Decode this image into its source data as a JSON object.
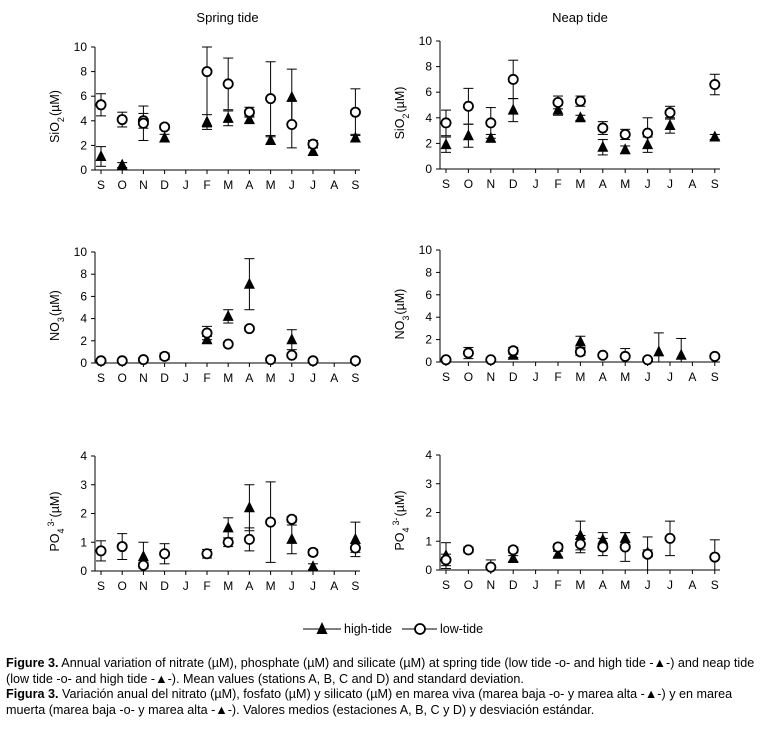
{
  "colors": {
    "ink": "#000000",
    "background": "#ffffff"
  },
  "legend": {
    "high_label": "high-tide",
    "low_label": "low-tide"
  },
  "caption": {
    "en_label": "Figure 3.",
    "en_text": " Annual variation of nitrate (µM), phosphate (µM) and silicate (µM) at spring tide (low tide -o- and high tide -▲-) and neap tide (low tide -o- and high tide -▲-). Mean values (stations A, B, C and D) and standard deviation.",
    "es_label": "Figura 3.",
    "es_text": " Variación anual del nitrato (µM), fosfato (µM) y silicato (µM) en marea viva (marea baja -o- y marea alta -▲-) y en marea muerta (marea baja -o- y marea alta -▲-). Valores medios (estaciones A, B, C y D) y desviación estándar."
  },
  "chart_data": [
    {
      "id": "sio2-spring",
      "type": "scatter",
      "title": "Spring tide",
      "ylabel": "SiO2 (µM)",
      "x_labels": [
        "S",
        "O",
        "N",
        "D",
        "J",
        "F",
        "M",
        "A",
        "M",
        "J",
        "J",
        "A",
        "S"
      ],
      "ylim": [
        0,
        10
      ],
      "yticks": [
        0,
        2,
        4,
        6,
        8,
        10
      ],
      "series": [
        {
          "name": "high-tide",
          "points": [
            {
              "x": 0,
              "y": 1.1,
              "sd": 0.8
            },
            {
              "x": 1,
              "y": 0.4,
              "sd": 0.2
            },
            {
              "x": 3,
              "y": 2.6,
              "sd": 0.3
            },
            {
              "x": 5,
              "y": 3.9,
              "sd": 0.6
            },
            {
              "x": 6,
              "y": 4.2,
              "sd": 0.6
            },
            {
              "x": 7,
              "y": 4.1,
              "sd": 0.3
            },
            {
              "x": 8,
              "y": 2.4,
              "sd": 0.3
            },
            {
              "x": 9,
              "y": 5.9,
              "sd": 2.3
            },
            {
              "x": 10,
              "y": 1.5,
              "sd": 0.3
            },
            {
              "x": 12,
              "y": 2.6,
              "sd": 0.3
            }
          ]
        },
        {
          "name": "low-tide",
          "points": [
            {
              "x": 0,
              "y": 5.3,
              "sd": 0.9
            },
            {
              "x": 1,
              "y": 4.1,
              "sd": 0.6
            },
            {
              "x": 2,
              "y": 4.0,
              "sd": 0.6
            },
            {
              "x": 2,
              "y": 3.8,
              "sd": 1.4
            },
            {
              "x": 3,
              "y": 3.5,
              "sd": 0.2
            },
            {
              "x": 5,
              "y": 8.0,
              "sd": 4.5
            },
            {
              "x": 6,
              "y": 7.0,
              "sd": 2.1
            },
            {
              "x": 7,
              "y": 4.7,
              "sd": 0.4
            },
            {
              "x": 8,
              "y": 5.8,
              "sd": 3.0
            },
            {
              "x": 9,
              "y": 3.7,
              "sd": 1.9
            },
            {
              "x": 10,
              "y": 2.1,
              "sd": 0.3
            },
            {
              "x": 12,
              "y": 4.7,
              "sd": 1.9
            }
          ]
        }
      ]
    },
    {
      "id": "sio2-neap",
      "type": "scatter",
      "title": "Neap tide",
      "ylabel": "SiO2 (µM)",
      "x_labels": [
        "S",
        "O",
        "N",
        "D",
        "J",
        "F",
        "M",
        "A",
        "M",
        "J",
        "J",
        "A",
        "S"
      ],
      "ylim": [
        0,
        10
      ],
      "yticks": [
        0,
        2,
        4,
        6,
        8,
        10
      ],
      "series": [
        {
          "name": "high-tide",
          "points": [
            {
              "x": 0,
              "y": 1.9,
              "sd": 0.6
            },
            {
              "x": 1,
              "y": 2.6,
              "sd": 0.9
            },
            {
              "x": 2,
              "y": 2.4,
              "sd": 0.3
            },
            {
              "x": 3,
              "y": 4.6,
              "sd": 0.9
            },
            {
              "x": 5,
              "y": 4.6,
              "sd": 0.4
            },
            {
              "x": 6,
              "y": 4.0,
              "sd": 0.2
            },
            {
              "x": 7,
              "y": 1.7,
              "sd": 0.6
            },
            {
              "x": 8,
              "y": 1.5,
              "sd": 0.3
            },
            {
              "x": 9,
              "y": 1.9,
              "sd": 0.6
            },
            {
              "x": 10,
              "y": 3.4,
              "sd": 0.6
            },
            {
              "x": 12,
              "y": 2.5,
              "sd": 0.2
            }
          ]
        },
        {
          "name": "low-tide",
          "points": [
            {
              "x": 0,
              "y": 3.6,
              "sd": 1.0
            },
            {
              "x": 1,
              "y": 4.9,
              "sd": 1.4
            },
            {
              "x": 2,
              "y": 3.6,
              "sd": 1.2
            },
            {
              "x": 3,
              "y": 7.0,
              "sd": 1.5
            },
            {
              "x": 5,
              "y": 5.2,
              "sd": 0.5
            },
            {
              "x": 6,
              "y": 5.3,
              "sd": 0.4
            },
            {
              "x": 7,
              "y": 3.2,
              "sd": 0.5
            },
            {
              "x": 8,
              "y": 2.7,
              "sd": 0.4
            },
            {
              "x": 9,
              "y": 2.8,
              "sd": 1.2
            },
            {
              "x": 10,
              "y": 4.4,
              "sd": 0.5
            },
            {
              "x": 12,
              "y": 6.6,
              "sd": 0.8
            }
          ]
        }
      ]
    },
    {
      "id": "no3-spring",
      "type": "scatter",
      "title": "",
      "ylabel": "NO3 (µM)",
      "x_labels": [
        "S",
        "O",
        "N",
        "D",
        "J",
        "F",
        "M",
        "A",
        "M",
        "J",
        "J",
        "A",
        "S"
      ],
      "ylim": [
        0,
        10
      ],
      "yticks": [
        0,
        2,
        4,
        6,
        8,
        10
      ],
      "series": [
        {
          "name": "high-tide",
          "points": [
            {
              "x": 5,
              "y": 2.1,
              "sd": 0.3
            },
            {
              "x": 6,
              "y": 4.2,
              "sd": 0.6
            },
            {
              "x": 7,
              "y": 7.1,
              "sd": 2.3
            },
            {
              "x": 9,
              "y": 2.1,
              "sd": 0.9
            }
          ]
        },
        {
          "name": "low-tide",
          "points": [
            {
              "x": 0,
              "y": 0.2,
              "sd": 0.1
            },
            {
              "x": 1,
              "y": 0.2,
              "sd": 0.1
            },
            {
              "x": 2,
              "y": 0.3,
              "sd": 0.1
            },
            {
              "x": 3,
              "y": 0.6,
              "sd": 0.3
            },
            {
              "x": 5,
              "y": 2.7,
              "sd": 0.6
            },
            {
              "x": 6,
              "y": 1.7,
              "sd": 0.2
            },
            {
              "x": 7,
              "y": 3.1,
              "sd": 0.2
            },
            {
              "x": 8,
              "y": 0.3,
              "sd": 0.1
            },
            {
              "x": 9,
              "y": 0.7,
              "sd": 0.2
            },
            {
              "x": 10,
              "y": 0.2,
              "sd": 0.1
            },
            {
              "x": 12,
              "y": 0.2,
              "sd": 0.1
            }
          ]
        }
      ]
    },
    {
      "id": "no3-neap",
      "type": "scatter",
      "title": "",
      "ylabel": "NO3 (µM)",
      "x_labels": [
        "S",
        "O",
        "N",
        "D",
        "J",
        "F",
        "M",
        "A",
        "M",
        "J",
        "J",
        "A",
        "S"
      ],
      "ylim": [
        0,
        10
      ],
      "yticks": [
        0,
        2,
        4,
        6,
        8,
        10
      ],
      "series": [
        {
          "name": "high-tide",
          "points": [
            {
              "x": 3,
              "y": 0.6,
              "sd": 0.2
            },
            {
              "x": 6,
              "y": 1.8,
              "sd": 0.5
            },
            {
              "x": 9.5,
              "y": 0.9,
              "sd": 1.7
            },
            {
              "x": 10.5,
              "y": 0.6,
              "sd": 1.5
            }
          ]
        },
        {
          "name": "low-tide",
          "points": [
            {
              "x": 0,
              "y": 0.2,
              "sd": 0.1
            },
            {
              "x": 1,
              "y": 0.8,
              "sd": 0.5
            },
            {
              "x": 2,
              "y": 0.2,
              "sd": 0.1
            },
            {
              "x": 3,
              "y": 1.0,
              "sd": 0.3
            },
            {
              "x": 6,
              "y": 0.9,
              "sd": 0.3
            },
            {
              "x": 7,
              "y": 0.6,
              "sd": 0.1
            },
            {
              "x": 8,
              "y": 0.5,
              "sd": 0.7
            },
            {
              "x": 9,
              "y": 0.2,
              "sd": 0.1
            },
            {
              "x": 12,
              "y": 0.5,
              "sd": 0.2
            }
          ]
        }
      ]
    },
    {
      "id": "po4-spring",
      "type": "scatter",
      "title": "",
      "ylabel": "PO4 3- (µM)",
      "x_labels": [
        "S",
        "O",
        "N",
        "D",
        "J",
        "F",
        "M",
        "A",
        "M",
        "J",
        "J",
        "A",
        "S"
      ],
      "ylim": [
        0,
        4
      ],
      "yticks": [
        0,
        1,
        2,
        3,
        4
      ],
      "series": [
        {
          "name": "high-tide",
          "points": [
            {
              "x": 2,
              "y": 0.5,
              "sd": 0.5
            },
            {
              "x": 6,
              "y": 1.5,
              "sd": 0.35
            },
            {
              "x": 7,
              "y": 2.2,
              "sd": 0.8
            },
            {
              "x": 9,
              "y": 1.1,
              "sd": 0.5
            },
            {
              "x": 10,
              "y": 0.15,
              "sd": 0.1
            },
            {
              "x": 12,
              "y": 1.1,
              "sd": 0.6
            }
          ]
        },
        {
          "name": "low-tide",
          "points": [
            {
              "x": 0,
              "y": 0.7,
              "sd": 0.35
            },
            {
              "x": 1,
              "y": 0.85,
              "sd": 0.45
            },
            {
              "x": 2,
              "y": 0.2,
              "sd": 0.1
            },
            {
              "x": 3,
              "y": 0.6,
              "sd": 0.35
            },
            {
              "x": 5,
              "y": 0.6,
              "sd": 0.15
            },
            {
              "x": 6,
              "y": 1.0,
              "sd": 0.15
            },
            {
              "x": 7,
              "y": 1.1,
              "sd": 0.4
            },
            {
              "x": 8,
              "y": 1.7,
              "sd": 1.4
            },
            {
              "x": 9,
              "y": 1.8,
              "sd": 0.1
            },
            {
              "x": 10,
              "y": 0.65,
              "sd": 0.1
            },
            {
              "x": 12,
              "y": 0.8,
              "sd": 0.15
            }
          ]
        }
      ]
    },
    {
      "id": "po4-neap",
      "type": "scatter",
      "title": "",
      "ylabel": "PO4 3- (µM)",
      "x_labels": [
        "S",
        "O",
        "N",
        "D",
        "J",
        "F",
        "M",
        "A",
        "M",
        "J",
        "J",
        "A",
        "S"
      ],
      "ylim": [
        0,
        4
      ],
      "yticks": [
        0,
        1,
        2,
        3,
        4
      ],
      "series": [
        {
          "name": "high-tide",
          "points": [
            {
              "x": 0,
              "y": 0.5,
              "sd": 0.45
            },
            {
              "x": 3,
              "y": 0.4,
              "sd": 0.1
            },
            {
              "x": 5,
              "y": 0.55,
              "sd": 0.1
            },
            {
              "x": 6,
              "y": 1.2,
              "sd": 0.5
            },
            {
              "x": 7,
              "y": 1.05,
              "sd": 0.25
            },
            {
              "x": 8,
              "y": 1.1,
              "sd": 0.2
            },
            {
              "x": 9,
              "y": 0.6,
              "sd": 0.1
            }
          ]
        },
        {
          "name": "low-tide",
          "points": [
            {
              "x": 0,
              "y": 0.35,
              "sd": 0.2
            },
            {
              "x": 1,
              "y": 0.7,
              "sd": 0.1
            },
            {
              "x": 2,
              "y": 0.1,
              "sd": 0.25
            },
            {
              "x": 3,
              "y": 0.7,
              "sd": 0.1
            },
            {
              "x": 5,
              "y": 0.8,
              "sd": 0.1
            },
            {
              "x": 6,
              "y": 0.9,
              "sd": 0.3
            },
            {
              "x": 7,
              "y": 0.8,
              "sd": 0.3
            },
            {
              "x": 8,
              "y": 0.8,
              "sd": 0.5
            },
            {
              "x": 9,
              "y": 0.55,
              "sd": 0.6
            },
            {
              "x": 10,
              "y": 1.1,
              "sd": 0.6
            },
            {
              "x": 12,
              "y": 0.45,
              "sd": 0.6
            }
          ]
        }
      ]
    }
  ]
}
